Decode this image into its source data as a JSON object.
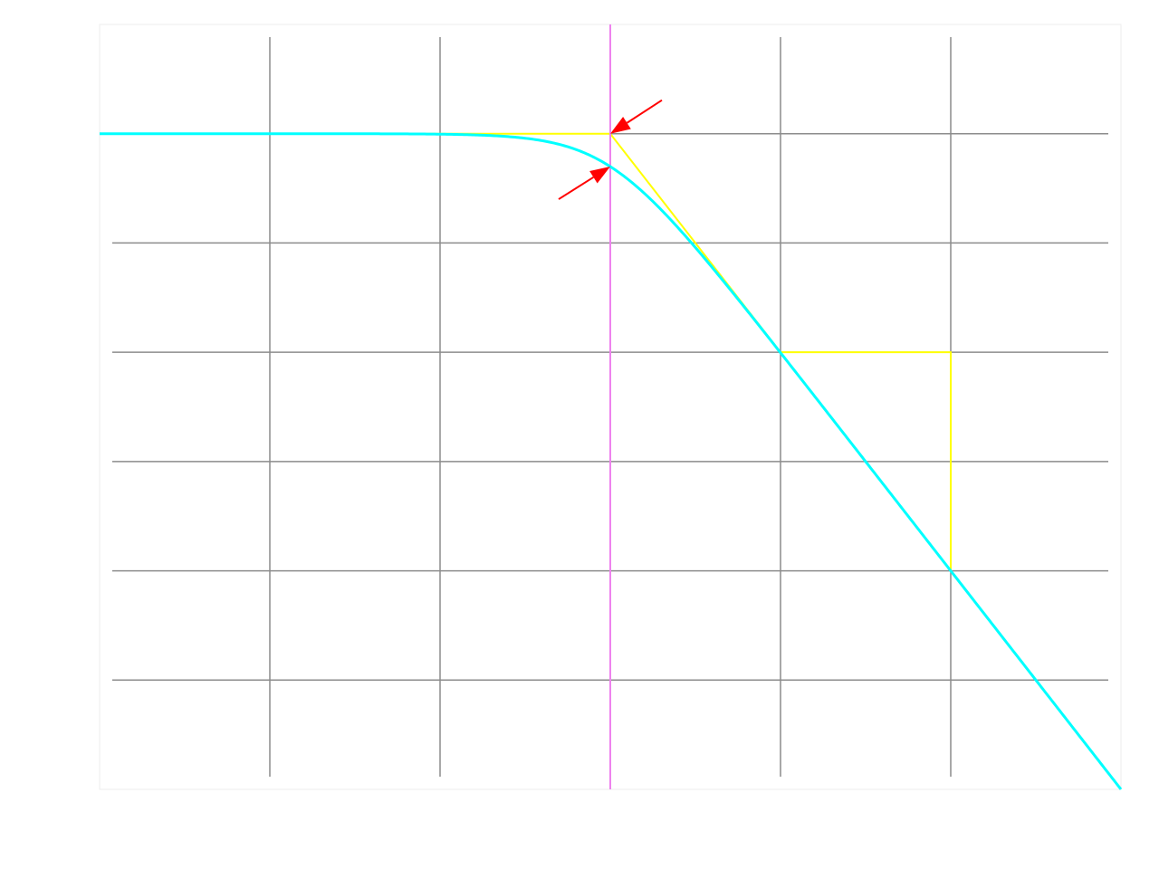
{
  "chart_data": {
    "type": "line",
    "title": "",
    "xlabel": "",
    "ylabel": "",
    "x_scale": "log",
    "xlim": [
      0.001,
      1000
    ],
    "ylim": [
      -60,
      10
    ],
    "x_gridlines": [
      0.01,
      0.1,
      1,
      10,
      100
    ],
    "y_gridlines": [
      0,
      -10,
      -20,
      -30,
      -40,
      -50
    ],
    "grid": true,
    "legend": "none",
    "cutoff_frequency": 1,
    "colors": {
      "response": "#00ffff",
      "asymptote": "#ffff00",
      "cutoff_marker": "#ee82ee",
      "arrows": "#ff0000",
      "grid": "#8c8c8c"
    },
    "series": [
      {
        "kind": "magnitude-response",
        "passband_db": 0,
        "db_at_cutoff": -3,
        "slope_db_per_decade": -20,
        "x": [
          0.001,
          0.01,
          0.1,
          0.3,
          0.5,
          0.7,
          1,
          1.5,
          2,
          3,
          5,
          10,
          30,
          100,
          300,
          1000
        ],
        "values": [
          0,
          0,
          -0.04,
          -0.37,
          -0.97,
          -1.73,
          -3.01,
          -5.12,
          -6.99,
          -10.0,
          -14.15,
          -20.04,
          -29.54,
          -40.0,
          -49.54,
          -60.0
        ]
      },
      {
        "kind": "asymptote",
        "x": [
          0.001,
          1,
          10
        ],
        "values": [
          0,
          0,
          -20
        ]
      },
      {
        "kind": "slope-indicator",
        "x": [
          10,
          100,
          100
        ],
        "values": [
          -20,
          -20,
          -40
        ]
      }
    ],
    "annotations": [
      {
        "kind": "arrow",
        "target_x": 1,
        "target_y": 0,
        "from": "upper-right"
      },
      {
        "kind": "arrow",
        "target_x": 1,
        "target_y": -3.01,
        "from": "lower-left"
      }
    ]
  }
}
